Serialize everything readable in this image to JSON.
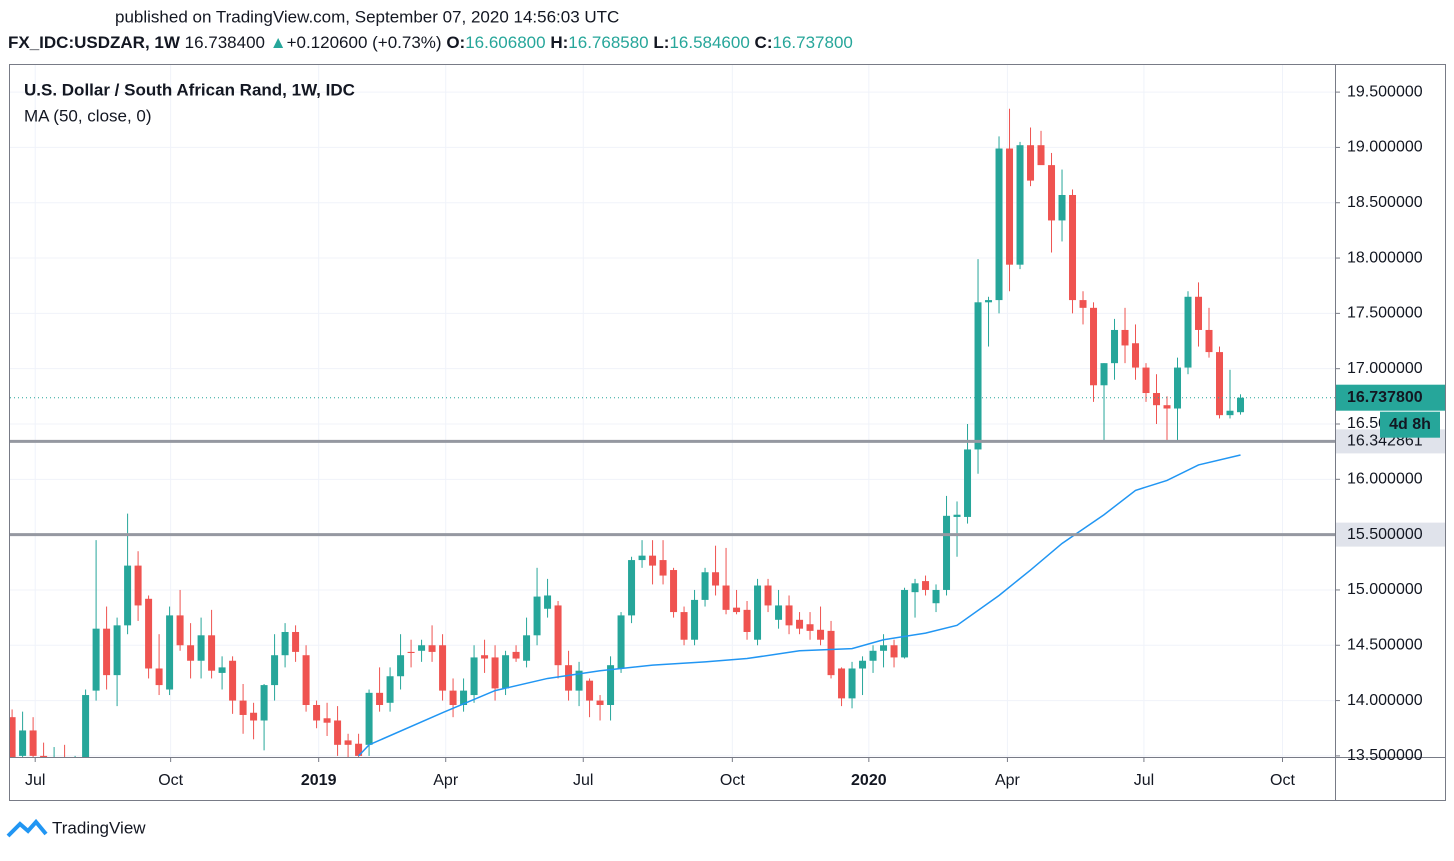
{
  "chart_data": {
    "type": "candlestick",
    "header": {
      "published": "published on TradingView.com, September 07, 2020 14:56:03 UTC",
      "symbol": "FX_IDC:USDZAR, 1W",
      "last": "16.738400",
      "arrow": "▲",
      "change": "+0.120600 (+0.73%)",
      "open_label": "O:",
      "open": "16.606800",
      "high_label": "H:",
      "high": "16.768580",
      "low_label": "L:",
      "low": "16.584600",
      "close_label": "C:",
      "close": "16.737800"
    },
    "title": "U.S. Dollar / South African Rand, 1W, IDC",
    "footer": "TradingView",
    "up_color": "#26a69a",
    "down_color": "#ef5350",
    "x": [
      0,
      1,
      2,
      3,
      4,
      5,
      6,
      7,
      8,
      9,
      10,
      11,
      12,
      13,
      14,
      15,
      16,
      17,
      18,
      19,
      20,
      21,
      22,
      23,
      24,
      25,
      26,
      27,
      28,
      29,
      30,
      31,
      32,
      33,
      34,
      35,
      36,
      37,
      38,
      39,
      40,
      41,
      42,
      43,
      44,
      45,
      46,
      47,
      48,
      49,
      50,
      51,
      52,
      53,
      54,
      55,
      56,
      57,
      58,
      59,
      60,
      61,
      62,
      63,
      64,
      65,
      66,
      67,
      68,
      69,
      70,
      71,
      72,
      73,
      74,
      75,
      76,
      77,
      78,
      79,
      80,
      81,
      82,
      83,
      84,
      85,
      86,
      87,
      88,
      89,
      90,
      91,
      92,
      93,
      94,
      95,
      96,
      97,
      98,
      99,
      100,
      101,
      102,
      103,
      104,
      105,
      106,
      107,
      108,
      109,
      110,
      111,
      112,
      113,
      114,
      115,
      116,
      117
    ],
    "open": [
      13.85,
      13.5,
      13.73,
      13.5,
      13.35,
      13.45,
      13.35,
      13.45,
      14.09,
      14.65,
      14.23,
      14.68,
      15.22,
      14.92,
      14.29,
      14.1,
      14.77,
      14.5,
      14.36,
      14.59,
      14.25,
      14.36,
      14.0,
      13.89,
      13.82,
      14.14,
      14.41,
      14.62,
      14.41,
      13.96,
      13.84,
      13.82,
      13.64,
      13.61,
      13.6,
      14.07,
      13.98,
      14.22,
      14.44,
      14.45,
      14.5,
      14.5,
      14.09,
      13.96,
      14.05,
      14.41,
      14.39,
      14.11,
      14.44,
      14.36,
      14.59,
      14.83,
      14.86,
      14.32,
      14.09,
      14.18,
      14.0,
      13.96,
      14.29,
      14.77,
      15.27,
      15.31,
      15.27,
      15.18,
      14.8,
      14.55,
      14.91,
      15.16,
      15.04,
      14.84,
      14.82,
      14.55,
      15.04,
      14.73,
      14.86,
      14.73,
      14.69,
      14.64,
      14.63,
      14.29,
      14.02,
      14.29,
      14.36,
      14.45,
      14.5,
      14.39,
      14.98,
      15.08,
      14.88,
      15.0,
      15.66,
      15.66,
      16.27,
      17.6,
      17.62,
      18.99,
      17.94,
      19.02,
      19.02,
      18.84,
      18.34,
      18.57,
      17.62,
      17.55,
      16.85,
      17.05,
      17.35,
      17.23,
      17.01,
      16.78,
      16.67,
      16.64,
      17.01,
      17.65,
      17.35,
      17.15,
      16.58,
      16.6068
    ],
    "high": [
      13.92,
      13.9,
      13.85,
      13.62,
      13.58,
      13.6,
      13.5,
      14.1,
      15.45,
      14.85,
      14.75,
      15.69,
      15.35,
      14.95,
      14.6,
      14.85,
      15.0,
      14.7,
      14.75,
      14.82,
      14.4,
      14.4,
      14.15,
      13.98,
      14.15,
      14.6,
      14.7,
      14.68,
      14.5,
      14.0,
      13.98,
      13.95,
      13.7,
      13.7,
      14.1,
      14.3,
      14.3,
      14.6,
      14.55,
      14.55,
      14.68,
      14.6,
      14.2,
      14.2,
      14.5,
      14.55,
      14.5,
      14.45,
      14.5,
      14.75,
      15.2,
      15.1,
      14.9,
      14.45,
      14.35,
      14.2,
      14.05,
      14.4,
      14.8,
      15.3,
      15.45,
      15.45,
      15.45,
      15.2,
      14.85,
      15.0,
      15.2,
      15.4,
      15.38,
      15.0,
      14.9,
      15.1,
      15.1,
      15.0,
      14.95,
      14.8,
      14.8,
      14.85,
      14.72,
      14.3,
      14.35,
      14.4,
      14.5,
      14.6,
      14.55,
      15.02,
      15.1,
      15.13,
      15.05,
      15.85,
      15.8,
      16.5,
      17.99,
      17.65,
      19.1,
      19.35,
      19.05,
      19.18,
      19.15,
      18.95,
      18.8,
      18.62,
      17.7,
      17.6,
      17.05,
      17.45,
      17.55,
      17.4,
      17.05,
      16.95,
      16.75,
      17.1,
      17.7,
      17.78,
      17.55,
      17.2,
      16.99,
      16.76858
    ],
    "low": [
      13.3,
      13.3,
      13.4,
      13.3,
      13.25,
      13.3,
      13.2,
      13.4,
      14.0,
      14.1,
      13.95,
      14.6,
      14.72,
      14.2,
      14.05,
      14.05,
      14.45,
      14.2,
      14.2,
      14.2,
      14.1,
      13.88,
      13.7,
      13.65,
      13.55,
      14.0,
      14.3,
      14.35,
      13.9,
      13.75,
      13.68,
      13.5,
      13.45,
      13.42,
      13.5,
      13.9,
      13.9,
      14.1,
      14.3,
      14.35,
      14.35,
      14.0,
      13.85,
      13.9,
      13.98,
      14.25,
      14.0,
      14.05,
      14.35,
      14.3,
      14.5,
      14.75,
      14.2,
      14.0,
      13.95,
      13.85,
      13.82,
      13.82,
      14.25,
      14.7,
      15.2,
      15.05,
      15.05,
      14.75,
      14.5,
      14.5,
      14.85,
      14.95,
      14.78,
      14.78,
      14.55,
      14.5,
      14.8,
      14.65,
      14.6,
      14.6,
      14.55,
      14.5,
      14.2,
      13.95,
      13.93,
      14.05,
      14.25,
      14.3,
      14.3,
      14.38,
      14.75,
      14.95,
      14.8,
      14.95,
      15.3,
      15.6,
      16.05,
      17.2,
      17.5,
      17.7,
      17.9,
      18.65,
      18.9,
      18.05,
      18.15,
      17.5,
      17.4,
      16.7,
      16.35,
      16.9,
      17.05,
      16.9,
      16.7,
      16.5,
      16.35,
      16.35,
      16.95,
      17.2,
      17.1,
      16.55,
      16.55,
      16.5846
    ],
    "close": [
      13.4,
      13.73,
      13.5,
      13.4,
      13.45,
      13.35,
      13.45,
      14.05,
      14.65,
      14.23,
      14.68,
      15.22,
      14.86,
      14.29,
      14.14,
      14.77,
      14.5,
      14.36,
      14.59,
      14.27,
      14.3,
      14.0,
      13.87,
      13.82,
      14.14,
      14.41,
      14.62,
      14.44,
      13.96,
      13.82,
      13.8,
      13.6,
      13.6,
      13.5,
      14.07,
      13.96,
      14.22,
      14.41,
      14.43,
      14.5,
      14.44,
      14.09,
      13.96,
      14.09,
      14.39,
      14.38,
      14.11,
      14.41,
      14.38,
      14.59,
      14.94,
      14.95,
      14.32,
      14.09,
      14.27,
      14.0,
      13.96,
      14.32,
      14.77,
      15.27,
      15.31,
      15.22,
      15.13,
      14.8,
      14.55,
      14.91,
      15.16,
      15.04,
      14.82,
      14.8,
      14.62,
      15.04,
      14.86,
      14.86,
      14.68,
      14.65,
      14.63,
      14.55,
      14.23,
      14.02,
      14.29,
      14.36,
      14.45,
      14.5,
      14.39,
      15.0,
      15.06,
      15.0,
      15.0,
      15.67,
      15.68,
      16.27,
      17.6,
      17.62,
      18.99,
      17.94,
      19.02,
      18.7,
      18.84,
      18.34,
      18.57,
      17.62,
      17.55,
      16.85,
      17.05,
      17.35,
      17.21,
      17.01,
      16.78,
      16.67,
      16.64,
      17.01,
      17.65,
      17.35,
      17.15,
      16.58,
      16.62,
      16.7378
    ],
    "series": [
      {
        "name": "MA (50, close, 0)",
        "color": "#2196f3",
        "x": [
          33,
          34,
          41,
          46,
          51,
          56,
          61,
          66,
          70,
          75,
          80,
          83,
          87,
          90,
          94,
          97,
          100,
          104,
          107,
          110,
          113,
          117
        ],
        "values": [
          13.5,
          13.6,
          13.89,
          14.09,
          14.2,
          14.27,
          14.32,
          14.35,
          14.38,
          14.45,
          14.47,
          14.55,
          14.61,
          14.68,
          14.95,
          15.18,
          15.42,
          15.68,
          15.9,
          15.99,
          16.13,
          16.22
        ]
      }
    ],
    "levels": [
      {
        "value": 16.342861,
        "label": "16.342861"
      },
      {
        "value": 15.5,
        "label": "15.500000"
      }
    ],
    "last_price": {
      "value": 16.7378,
      "label": "16.737800"
    },
    "countdown": "4d 8h",
    "xlim": [
      -0.2,
      126
    ],
    "xticks": [
      {
        "value": 2.2,
        "label": "Jul"
      },
      {
        "value": 15.1,
        "label": "Oct"
      },
      {
        "value": 29.2,
        "label": "2019"
      },
      {
        "value": 41.3,
        "label": "Apr"
      },
      {
        "value": 54.4,
        "label": "Jul"
      },
      {
        "value": 68.6,
        "label": "Oct"
      },
      {
        "value": 81.6,
        "label": "2020"
      },
      {
        "value": 94.8,
        "label": "Apr"
      },
      {
        "value": 107.8,
        "label": "Jul"
      },
      {
        "value": 121.0,
        "label": "Oct"
      }
    ],
    "ylim": [
      13.49,
      19.745
    ],
    "yticks": [
      {
        "value": 13.5,
        "label": "13.500000"
      },
      {
        "value": 14.0,
        "label": "14.000000"
      },
      {
        "value": 14.5,
        "label": "14.500000"
      },
      {
        "value": 15.0,
        "label": "15.000000"
      },
      {
        "value": 15.5,
        "label": "15.500000"
      },
      {
        "value": 16.0,
        "label": "16.000000"
      },
      {
        "value": 16.5,
        "label": "16.500000"
      },
      {
        "value": 17.0,
        "label": "17.000000"
      },
      {
        "value": 17.5,
        "label": "17.500000"
      },
      {
        "value": 18.0,
        "label": "18.000000"
      },
      {
        "value": 18.5,
        "label": "18.500000"
      },
      {
        "value": 19.0,
        "label": "19.000000"
      },
      {
        "value": 19.5,
        "label": "19.500000"
      }
    ],
    "grid": true
  }
}
